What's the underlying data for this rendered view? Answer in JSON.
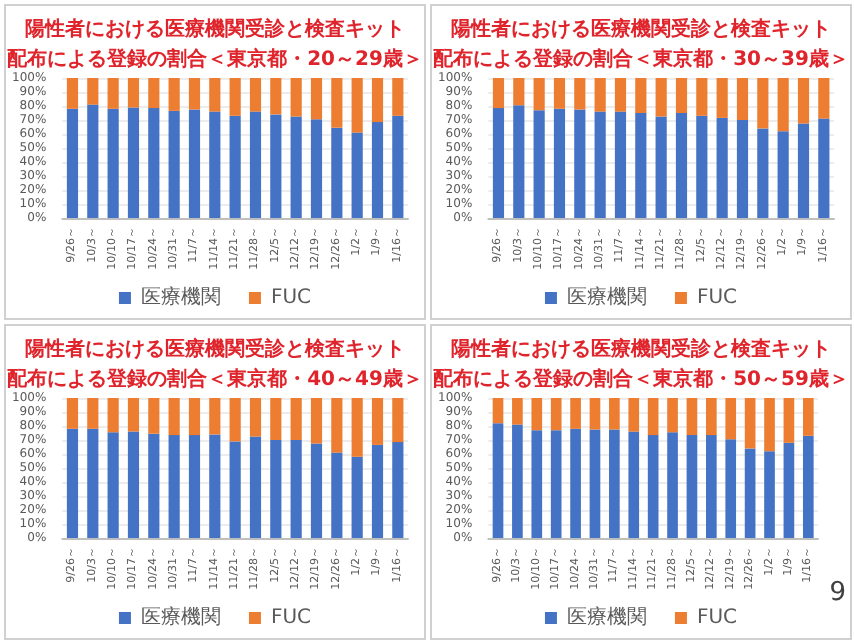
{
  "chart_data": [
    {
      "type": "bar",
      "stacked": true,
      "title": "陽性者における医療機関受診と検査キット",
      "subtitle": "配布による登録の割合＜東京都・20～29歳＞",
      "categories": [
        "9/26～",
        "10/3～",
        "10/10～",
        "10/17～",
        "10/24～",
        "10/31～",
        "11/7～",
        "11/14～",
        "11/21～",
        "11/28～",
        "12/5～",
        "12/12～",
        "12/19～",
        "12/26～",
        "1/2～",
        "1/9～",
        "1/16～"
      ],
      "series": [
        {
          "name": "医療機関",
          "color": "#4472c4",
          "values": [
            78,
            81,
            78,
            79,
            78.5,
            76.5,
            77.5,
            76,
            73,
            76,
            74,
            72.5,
            70.5,
            64.5,
            61,
            68.5,
            73
          ]
        },
        {
          "name": "FUC",
          "color": "#ed7d31",
          "values": [
            22,
            19,
            22,
            21,
            21.5,
            23.5,
            22.5,
            24,
            27,
            24,
            26,
            27.5,
            29.5,
            35.5,
            39,
            31.5,
            27
          ]
        }
      ],
      "ylim": [
        0,
        100
      ],
      "yticks": [
        {
          "value": 0,
          "label": "0%"
        },
        {
          "value": 10,
          "label": "10%"
        },
        {
          "value": 20,
          "label": "20%"
        },
        {
          "value": 30,
          "label": "30%"
        },
        {
          "value": 40,
          "label": "40%"
        },
        {
          "value": 50,
          "label": "50%"
        },
        {
          "value": 60,
          "label": "60%"
        },
        {
          "value": 70,
          "label": "70%"
        },
        {
          "value": 80,
          "label": "80%"
        },
        {
          "value": 90,
          "label": "90%"
        },
        {
          "value": 100,
          "label": "100%"
        }
      ],
      "grid": "y",
      "legend": "bottom"
    },
    {
      "type": "bar",
      "stacked": true,
      "title": "陽性者における医療機関受診と検査キット",
      "subtitle": "配布による登録の割合＜東京都・30～39歳＞",
      "categories": [
        "9/26～",
        "10/3～",
        "10/10～",
        "10/17～",
        "10/24～",
        "10/31～",
        "11/7～",
        "11/14～",
        "11/21～",
        "11/28～",
        "12/5～",
        "12/12～",
        "12/19～",
        "12/26～",
        "1/2～",
        "1/9～",
        "1/16～"
      ],
      "series": [
        {
          "name": "医療機関",
          "color": "#4472c4",
          "values": [
            78.5,
            80.5,
            77,
            78,
            77.5,
            76,
            76,
            75,
            72.5,
            75,
            73,
            71.5,
            70,
            64,
            62,
            67.5,
            71
          ]
        },
        {
          "name": "FUC",
          "color": "#ed7d31",
          "values": [
            21.5,
            19.5,
            23,
            22,
            22.5,
            24,
            24,
            25,
            27.5,
            25,
            27,
            28.5,
            30,
            36,
            38,
            32.5,
            29
          ]
        }
      ],
      "ylim": [
        0,
        100
      ],
      "yticks": [
        {
          "value": 0,
          "label": "0%"
        },
        {
          "value": 10,
          "label": "10%"
        },
        {
          "value": 20,
          "label": "20%"
        },
        {
          "value": 30,
          "label": "30%"
        },
        {
          "value": 40,
          "label": "40%"
        },
        {
          "value": 50,
          "label": "50%"
        },
        {
          "value": 60,
          "label": "60%"
        },
        {
          "value": 70,
          "label": "70%"
        },
        {
          "value": 80,
          "label": "80%"
        },
        {
          "value": 90,
          "label": "90%"
        },
        {
          "value": 100,
          "label": "100%"
        }
      ],
      "grid": "y",
      "legend": "bottom"
    },
    {
      "type": "bar",
      "stacked": true,
      "title": "陽性者における医療機関受診と検査キット",
      "subtitle": "配布による登録の割合＜東京都・40～49歳＞",
      "categories": [
        "9/26～",
        "10/3～",
        "10/10～",
        "10/17～",
        "10/24～",
        "10/31～",
        "11/7～",
        "11/14～",
        "11/21～",
        "11/28～",
        "12/5～",
        "12/12～",
        "12/19～",
        "12/26～",
        "1/2～",
        "1/9～",
        "1/16～"
      ],
      "series": [
        {
          "name": "医療機関",
          "color": "#4472c4",
          "values": [
            78,
            78,
            75.5,
            76,
            74.5,
            73.5,
            73.5,
            74,
            69,
            72.5,
            70,
            70,
            67.5,
            61,
            58,
            66.5,
            68.5
          ]
        },
        {
          "name": "FUC",
          "color": "#ed7d31",
          "values": [
            22,
            22,
            24.5,
            24,
            25.5,
            26.5,
            26.5,
            26,
            31,
            27.5,
            30,
            30,
            32.5,
            39,
            42,
            33.5,
            31.5
          ]
        }
      ],
      "ylim": [
        0,
        100
      ],
      "yticks": [
        {
          "value": 0,
          "label": "0%"
        },
        {
          "value": 10,
          "label": "10%"
        },
        {
          "value": 20,
          "label": "20%"
        },
        {
          "value": 30,
          "label": "30%"
        },
        {
          "value": 40,
          "label": "40%"
        },
        {
          "value": 50,
          "label": "50%"
        },
        {
          "value": 60,
          "label": "60%"
        },
        {
          "value": 70,
          "label": "70%"
        },
        {
          "value": 80,
          "label": "80%"
        },
        {
          "value": 90,
          "label": "90%"
        },
        {
          "value": 100,
          "label": "100%"
        }
      ],
      "grid": "y",
      "legend": "bottom"
    },
    {
      "type": "bar",
      "stacked": true,
      "title": "陽性者における医療機関受診と検査キット",
      "subtitle": "配布による登録の割合＜東京都・50～59歳＞",
      "categories": [
        "9/26～",
        "10/3～",
        "10/10～",
        "10/17～",
        "10/24～",
        "10/31～",
        "11/7～",
        "11/14～",
        "11/21～",
        "11/28～",
        "12/5～",
        "12/12～",
        "12/19～",
        "12/26～",
        "1/2～",
        "1/9～",
        "1/16～"
      ],
      "series": [
        {
          "name": "医療機関",
          "color": "#4472c4",
          "values": [
            82,
            81,
            77,
            77,
            78,
            77.5,
            77.5,
            76,
            73.5,
            75.5,
            73.5,
            73.5,
            70.5,
            64,
            62,
            68,
            73
          ]
        },
        {
          "name": "FUC",
          "color": "#ed7d31",
          "values": [
            18,
            19,
            23,
            23,
            22,
            22.5,
            22.5,
            24,
            26.5,
            24.5,
            26.5,
            26.5,
            29.5,
            36,
            38,
            32,
            27
          ]
        }
      ],
      "ylim": [
        0,
        100
      ],
      "yticks": [
        {
          "value": 0,
          "label": "0%"
        },
        {
          "value": 10,
          "label": "10%"
        },
        {
          "value": 20,
          "label": "20%"
        },
        {
          "value": 30,
          "label": "30%"
        },
        {
          "value": 40,
          "label": "40%"
        },
        {
          "value": 50,
          "label": "50%"
        },
        {
          "value": 60,
          "label": "60%"
        },
        {
          "value": 70,
          "label": "70%"
        },
        {
          "value": 80,
          "label": "80%"
        },
        {
          "value": 90,
          "label": "90%"
        },
        {
          "value": 100,
          "label": "100%"
        }
      ],
      "grid": "y",
      "legend": "bottom",
      "annotations": [
        "9"
      ]
    }
  ]
}
